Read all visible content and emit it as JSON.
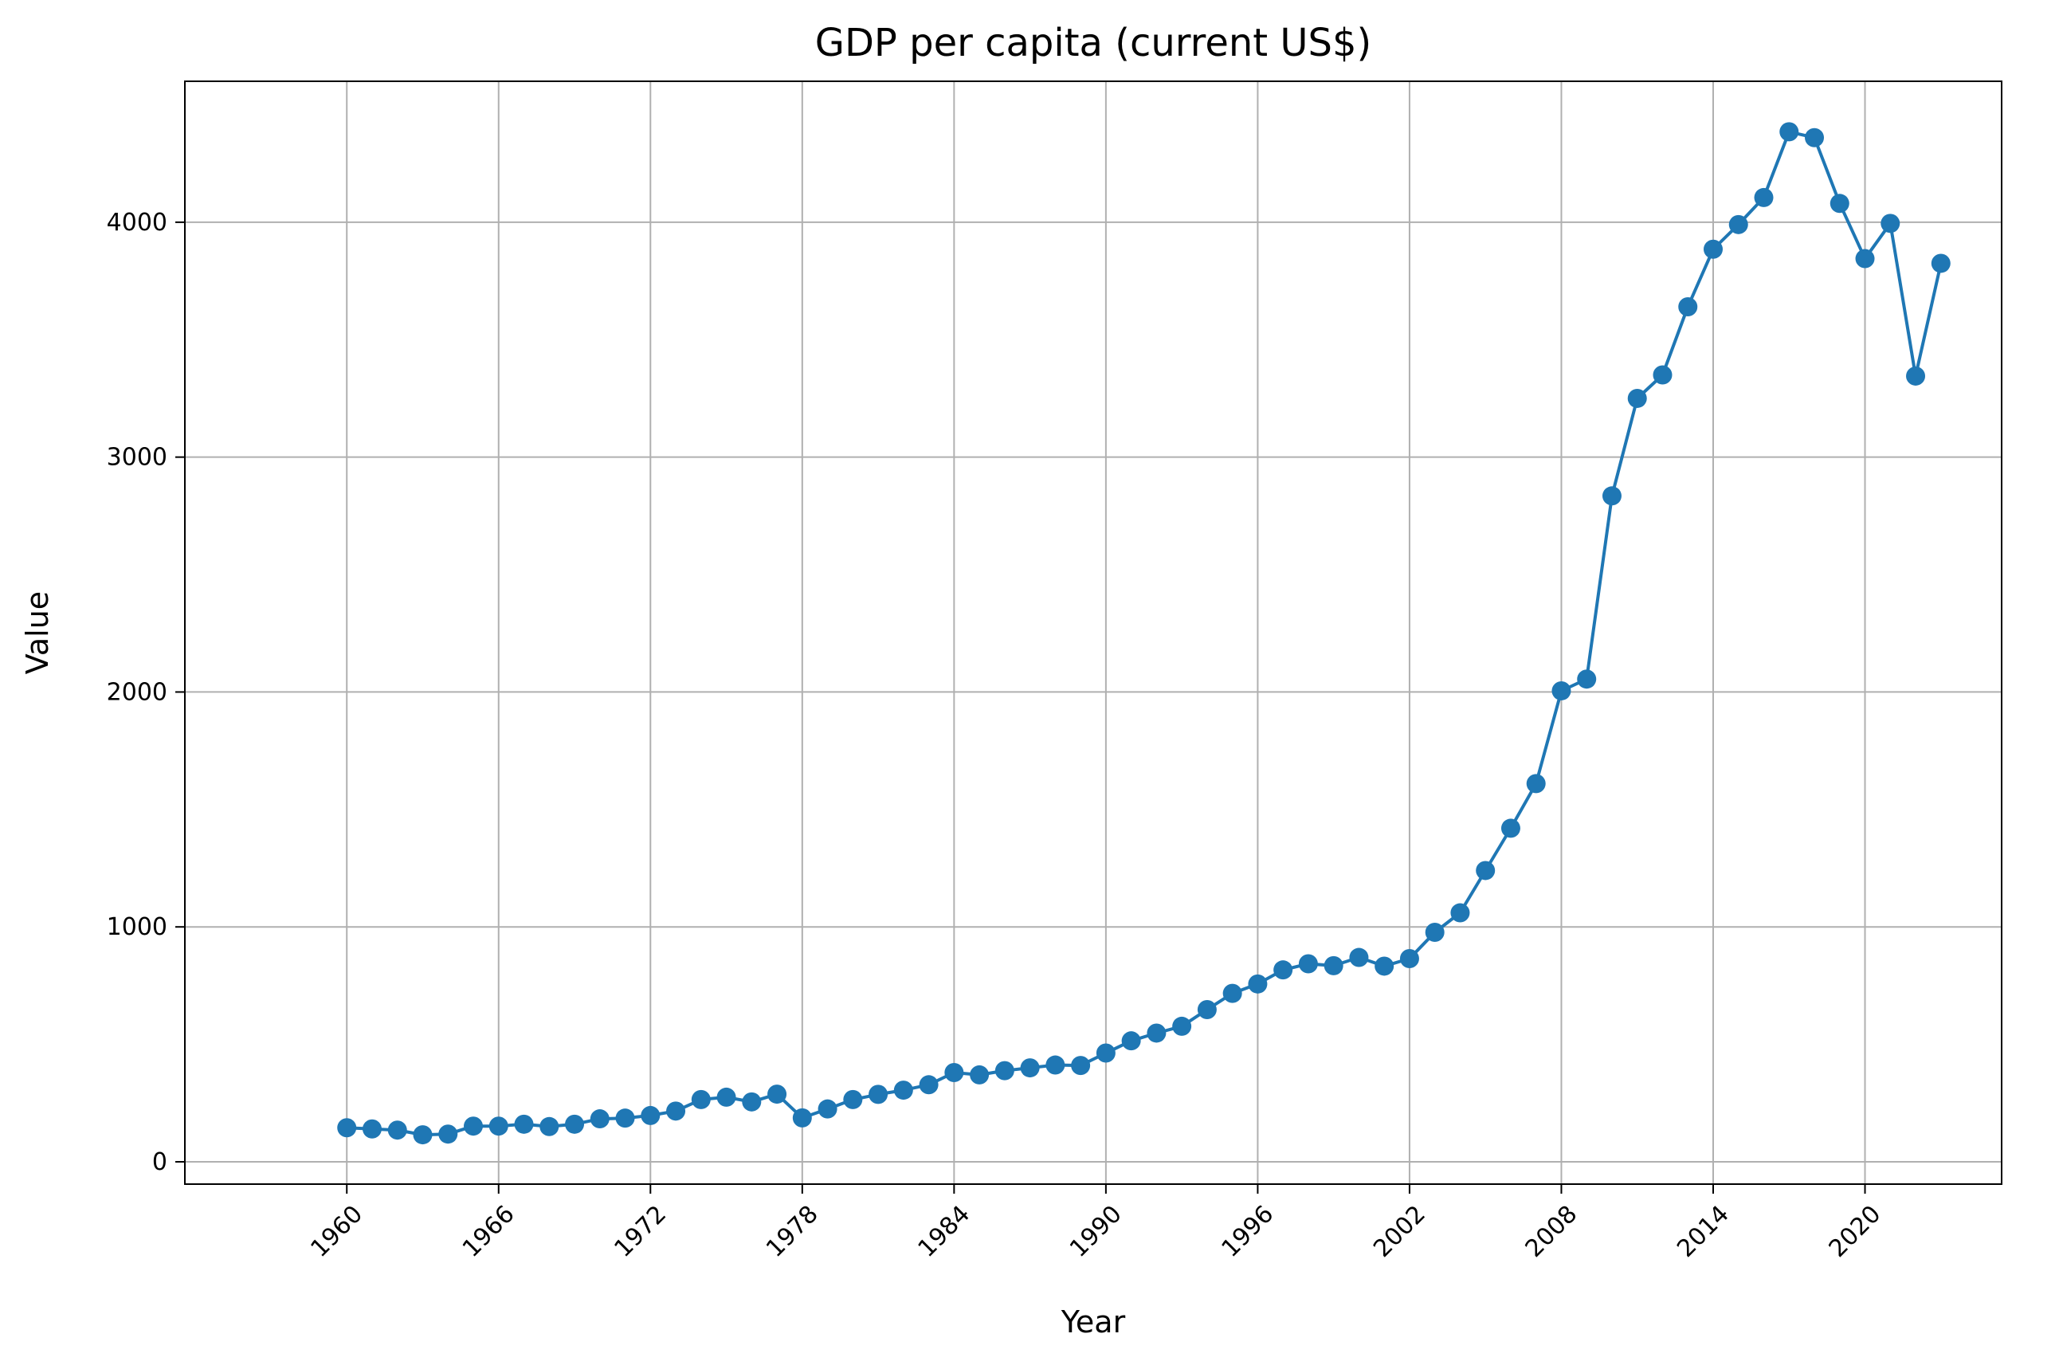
{
  "chart_data": {
    "type": "line",
    "title": "GDP per capita (current US$)",
    "xlabel": "Year",
    "ylabel": "Value",
    "xlim": [
      1953.6,
      2025.4
    ],
    "ylim": [
      -95,
      4600
    ],
    "x_ticks": [
      1960,
      1966,
      1972,
      1978,
      1984,
      1990,
      1996,
      2002,
      2008,
      2014,
      2020
    ],
    "y_ticks": [
      0,
      1000,
      2000,
      3000,
      4000
    ],
    "grid": true,
    "legend": "none",
    "colors": {
      "series": "#1f77b4",
      "grid": "#b0b0b0",
      "axes": "#000000"
    },
    "series": [
      {
        "x": [
          1960,
          1961,
          1962,
          1963,
          1964,
          1965,
          1966,
          1967,
          1968,
          1969,
          1970,
          1971,
          1972,
          1973,
          1974,
          1975,
          1976,
          1977,
          1978,
          1979,
          1980,
          1981,
          1982,
          1983,
          1984,
          1985,
          1986,
          1987,
          1988,
          1989,
          1990,
          1991,
          1992,
          1993,
          1994,
          1995,
          1996,
          1997,
          1998,
          1999,
          2000,
          2001,
          2002,
          2003,
          2004,
          2005,
          2006,
          2007,
          2008,
          2009,
          2010,
          2011,
          2012,
          2013,
          2014,
          2015,
          2016,
          2017,
          2018,
          2019,
          2020,
          2021,
          2022,
          2023
        ],
        "values": [
          145,
          140,
          135,
          115,
          118,
          152,
          152,
          160,
          150,
          160,
          183,
          186,
          197,
          216,
          265,
          275,
          255,
          288,
          187,
          225,
          265,
          287,
          305,
          328,
          380,
          370,
          388,
          400,
          412,
          410,
          463,
          515,
          548,
          577,
          648,
          717,
          757,
          817,
          843,
          835,
          870,
          833,
          865,
          977,
          1060,
          1240,
          1420,
          1610,
          2005,
          2055,
          2835,
          3250,
          3350,
          3640,
          3885,
          3990,
          4105,
          4385,
          4360,
          4080,
          3845,
          3995,
          3345,
          3825
        ]
      }
    ]
  }
}
